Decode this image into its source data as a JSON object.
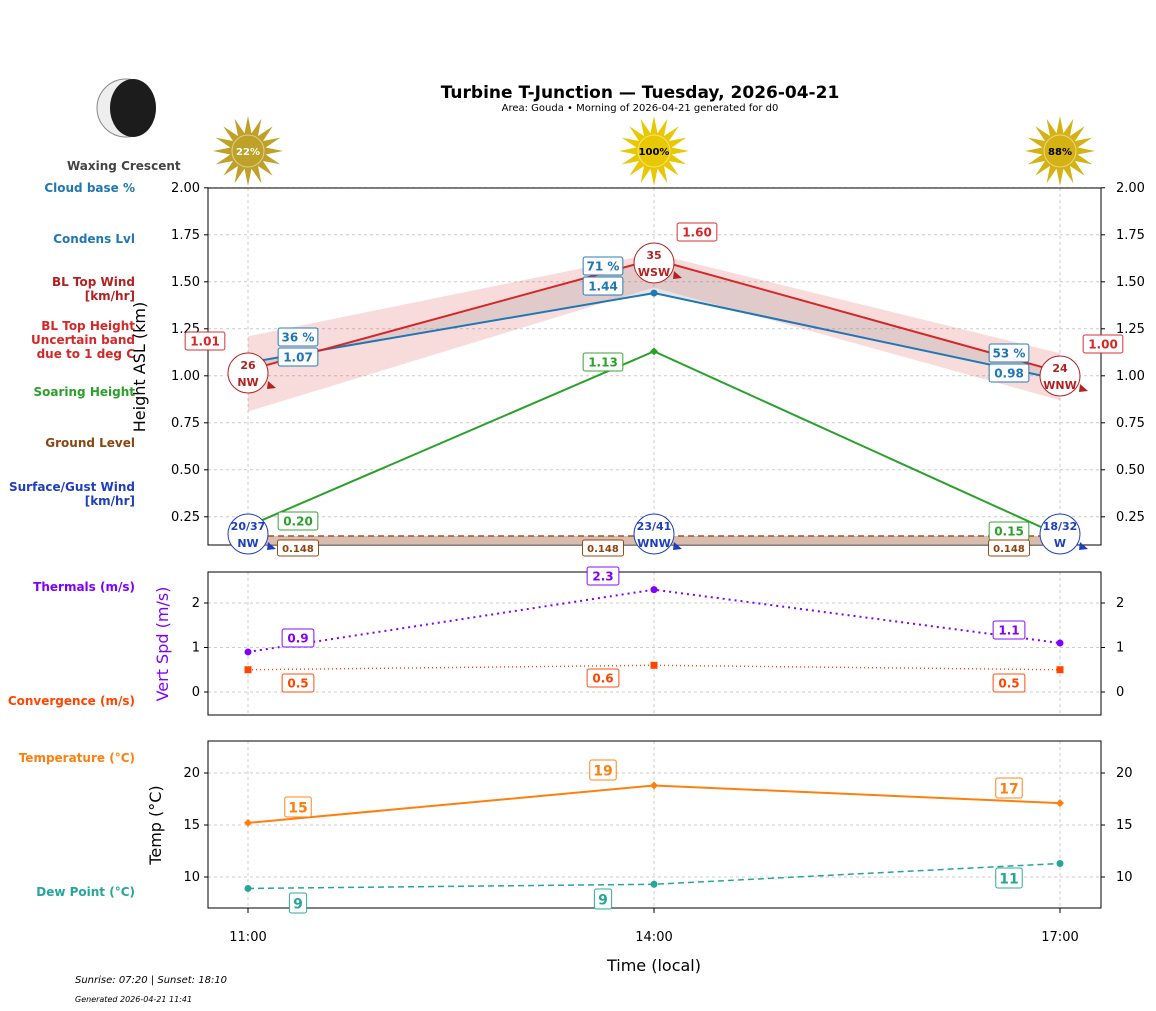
{
  "header": {
    "title": "Turbine T-Junction — Tuesday, 2026-04-21",
    "subtitle": "Area: Gouda • Morning of 2026-04-21 generated for d0",
    "moon_phase": "Waxing Crescent"
  },
  "footer": {
    "sun_times": "Sunrise: 07:20 | Sunset: 18:10",
    "generated": "Generated 2026-04-21 11:41"
  },
  "side_labels": {
    "cloud_base": "Cloud base %",
    "condens": "Condens Lvl",
    "bl_wind_1": "BL Top Wind",
    "bl_wind_2": "[km/hr]",
    "bl_height_1": "BL Top Height",
    "bl_height_2": "Uncertain band",
    "bl_height_3": "due to 1 deg C",
    "soaring": "Soaring Height",
    "ground": "Ground Level",
    "surface_1": "Surface/Gust Wind",
    "surface_2": "[km/hr]",
    "thermals": "Thermals (m/s)",
    "convergence": "Convergence (m/s)",
    "temperature": "Temperature (°C)",
    "dewpoint": "Dew Point (°C)"
  },
  "colors": {
    "cloud": "#1f77b4",
    "bl_top": "#d62728",
    "bl_wind": "#b22222",
    "soaring": "#2ca02c",
    "ground": "#8b4513",
    "surface_wind": "#1f3fbf",
    "thermals": "#8000ff",
    "convergence": "#ff4500",
    "temperature": "#ff7f0e",
    "dewpoint": "#26a69a"
  },
  "sun": [
    {
      "time": "11:00",
      "label": "22%",
      "color": "#bfa12a"
    },
    {
      "time": "14:00",
      "label": "100%",
      "color": "#e8c800"
    },
    {
      "time": "17:00",
      "label": "88%",
      "color": "#d4b214"
    }
  ],
  "chart_data": [
    {
      "type": "line",
      "panel": "height",
      "ylabel": "Height ASL (km)",
      "x": [
        "11:00",
        "14:00",
        "17:00"
      ],
      "ylim": [
        0.1,
        2.0
      ],
      "yticks": [
        "0.25",
        "0.50",
        "0.75",
        "1.00",
        "1.25",
        "1.50",
        "1.75",
        "2.00"
      ],
      "grid": true,
      "series": {
        "condens_level": {
          "values": [
            1.07,
            1.44,
            0.98
          ],
          "labels": [
            "1.07",
            "1.44",
            "0.98"
          ]
        },
        "cloud_base_pct": {
          "labels": [
            "36 %",
            "71 %",
            "53 %"
          ]
        },
        "bl_top": {
          "values": [
            1.01,
            1.6,
            1.0
          ],
          "labels": [
            "1.01",
            "1.60",
            "1.00"
          ]
        },
        "bl_top_band": {
          "lower": [
            0.81,
            1.47,
            0.87
          ],
          "upper": [
            1.21,
            1.65,
            1.12
          ]
        },
        "bl_wind": {
          "speed": [
            "26",
            "35",
            "24"
          ],
          "dir": [
            "NW",
            "WSW",
            "WNW"
          ]
        },
        "soaring": {
          "values": [
            0.2,
            1.13,
            0.15
          ],
          "labels": [
            "0.20",
            "1.13",
            "0.15"
          ]
        },
        "ground": {
          "values": [
            0.148,
            0.148,
            0.148
          ],
          "labels": [
            "0.148",
            "0.148",
            "0.148"
          ]
        },
        "surface_wind": {
          "speed": [
            "20/37",
            "23/41",
            "18/32"
          ],
          "dir": [
            "NW",
            "WNW",
            "W"
          ]
        }
      }
    },
    {
      "type": "line",
      "panel": "vertical_speed",
      "ylabel": "Vert Spd (m/s)",
      "x": [
        "11:00",
        "14:00",
        "17:00"
      ],
      "ylim": [
        -0.5,
        2.7
      ],
      "yticks": [
        "0",
        "1",
        "2"
      ],
      "grid": true,
      "series": {
        "thermals": {
          "values": [
            0.9,
            2.3,
            1.1
          ],
          "labels": [
            "0.9",
            "2.3",
            "1.1"
          ]
        },
        "convergence": {
          "values": [
            0.5,
            0.6,
            0.5
          ],
          "labels": [
            "0.5",
            "0.6",
            "0.5"
          ]
        }
      }
    },
    {
      "type": "line",
      "panel": "temperature",
      "ylabel": "Temp (°C)",
      "xlabel": "Time (local)",
      "x": [
        "11:00",
        "14:00",
        "17:00"
      ],
      "ylim": [
        7,
        23.1
      ],
      "yticks": [
        "10",
        "15",
        "20"
      ],
      "grid": true,
      "series": {
        "temperature": {
          "values": [
            15.2,
            18.8,
            17.1
          ],
          "labels": [
            "15",
            "19",
            "17"
          ]
        },
        "dewpoint": {
          "values": [
            8.9,
            9.3,
            11.3
          ],
          "labels": [
            "9",
            "9",
            "11"
          ]
        }
      }
    }
  ]
}
